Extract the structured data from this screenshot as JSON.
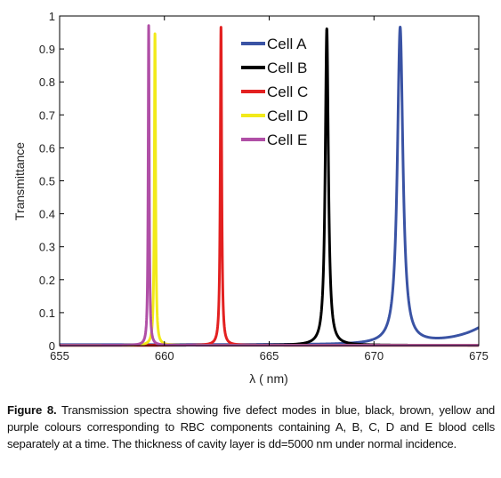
{
  "chart_data": {
    "type": "line",
    "xlabel": "λ ( nm)",
    "ylabel": "Transmittance",
    "xlim": [
      655,
      675
    ],
    "ylim": [
      0,
      1
    ],
    "xticks": [
      "655",
      "660",
      "665",
      "670",
      "675"
    ],
    "yticks": [
      "0",
      "0.1",
      "0.2",
      "0.3",
      "0.4",
      "0.5",
      "0.6",
      "0.7",
      "0.8",
      "0.9",
      "1"
    ],
    "grid": false,
    "legend_position": "top-right",
    "series": [
      {
        "name": "Cell A",
        "color": "#3a53a4",
        "peak_x": 671.25,
        "peak_y": 0.96,
        "width": 0.16,
        "offset": 0.003,
        "edge_rise": true
      },
      {
        "name": "Cell B",
        "color": "#000000",
        "peak_x": 667.75,
        "peak_y": 0.96,
        "width": 0.09,
        "offset": 0.001,
        "edge_rise": false
      },
      {
        "name": "Cell C",
        "color": "#e32020",
        "peak_x": 662.7,
        "peak_y": 0.965,
        "width": 0.04,
        "offset": 0.001,
        "edge_rise": false
      },
      {
        "name": "Cell D",
        "color": "#f2ea1a",
        "peak_x": 659.55,
        "peak_y": 0.945,
        "width": 0.035,
        "offset": 0.001,
        "edge_rise": false
      },
      {
        "name": "Cell E",
        "color": "#b04fa6",
        "peak_x": 659.25,
        "peak_y": 0.97,
        "width": 0.03,
        "offset": 0.001,
        "edge_rise": false
      }
    ]
  },
  "caption": {
    "label": "Figure 8.",
    "text": " Transmission spectra showing five defect modes in blue, black, brown, yellow and purple colours corresponding to RBC components containing A, B, C, D and E blood cells separately at a time. The thickness of cavity layer is dd=5000 nm under normal incidence."
  }
}
